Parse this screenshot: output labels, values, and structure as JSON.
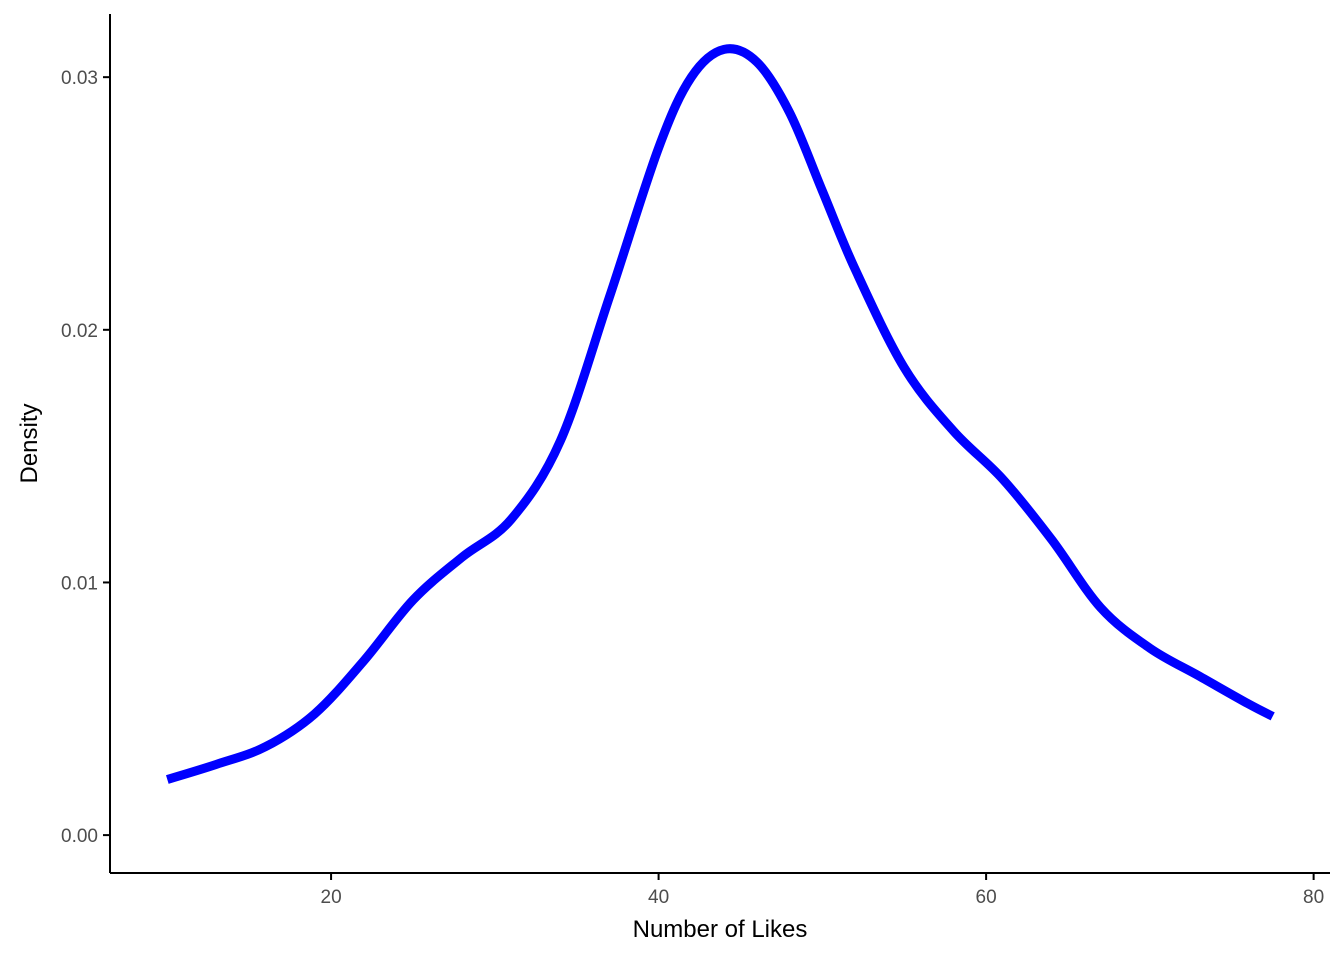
{
  "chart_data": {
    "type": "line",
    "xlabel": "Number of Likes",
    "ylabel": "Density",
    "xlim": [
      6.5,
      81
    ],
    "ylim": [
      -0.0015,
      0.0325
    ],
    "x_ticks": [
      20,
      40,
      60,
      80
    ],
    "y_ticks": [
      0.0,
      0.01,
      0.02,
      0.03
    ],
    "x_tick_labels": [
      "20",
      "40",
      "60",
      "80"
    ],
    "y_tick_labels": [
      "0.00",
      "0.01",
      "0.02",
      "0.03"
    ],
    "grid": false,
    "legend": "none",
    "series": [
      {
        "color": "#0000ff",
        "x": [
          10,
          13,
          16,
          19,
          22,
          25,
          28,
          31,
          34,
          37,
          40,
          42,
          44,
          46,
          48,
          50,
          52,
          55,
          58,
          61,
          64,
          67,
          70,
          73,
          76,
          77.5
        ],
        "y": [
          0.0022,
          0.0028,
          0.0035,
          0.0048,
          0.0069,
          0.0093,
          0.011,
          0.0125,
          0.0156,
          0.0213,
          0.0272,
          0.03,
          0.0311,
          0.0306,
          0.0286,
          0.0255,
          0.0224,
          0.0185,
          0.016,
          0.0141,
          0.0117,
          0.009,
          0.0074,
          0.0063,
          0.0052,
          0.0047
        ]
      }
    ]
  }
}
